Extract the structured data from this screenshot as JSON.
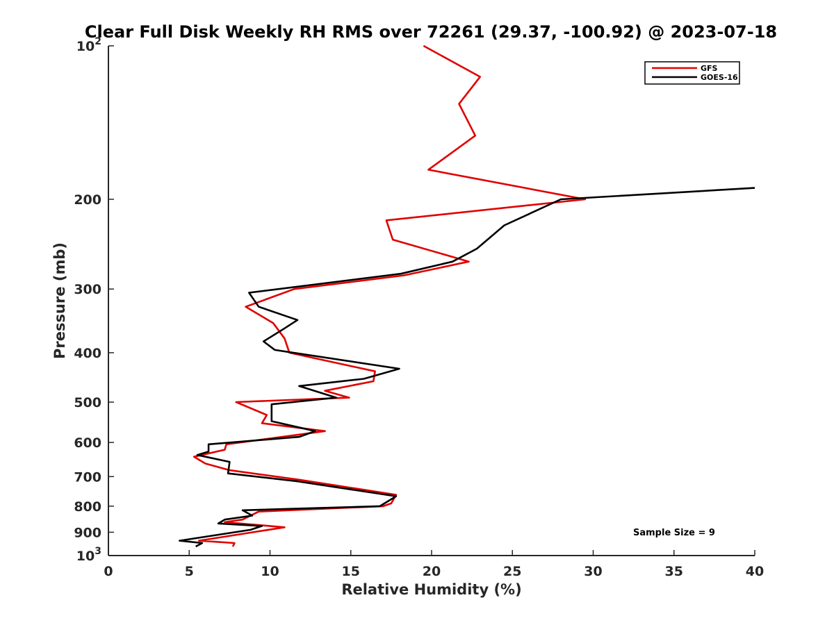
{
  "chart_data": {
    "type": "line",
    "title": "Clear Full Disk Weekly RH RMS over 72261 (29.37, -100.92) @ 2023-07-18",
    "xlabel": "Relative Humidity (%)",
    "ylabel": "Pressure (mb)",
    "xlim": [
      0,
      40
    ],
    "ylim": [
      100,
      1000
    ],
    "y_scale": "log",
    "y_reversed": true,
    "grid": false,
    "legend_position": "top-right",
    "x_ticks": [
      "0",
      "5",
      "10",
      "15",
      "20",
      "25",
      "30",
      "35",
      "40"
    ],
    "y_ticks": [
      {
        "value": 100,
        "base": "10",
        "exp": "2"
      },
      {
        "value": 200,
        "label": "200"
      },
      {
        "value": 300,
        "label": "300"
      },
      {
        "value": 400,
        "label": "400"
      },
      {
        "value": 500,
        "label": "500"
      },
      {
        "value": 600,
        "label": "600"
      },
      {
        "value": 700,
        "label": "700"
      },
      {
        "value": 800,
        "label": "800"
      },
      {
        "value": 900,
        "label": "900"
      },
      {
        "value": 1000,
        "base": "10",
        "exp": "3"
      }
    ],
    "annotation": "Sample Size = 9",
    "series": [
      {
        "name": "GFS",
        "color": "#e00000",
        "points": [
          [
            19.5,
            100
          ],
          [
            23.0,
            115
          ],
          [
            21.7,
            130
          ],
          [
            22.7,
            150
          ],
          [
            19.8,
            175
          ],
          [
            29.5,
            200
          ],
          [
            17.2,
            220
          ],
          [
            17.6,
            240
          ],
          [
            22.3,
            265
          ],
          [
            18.3,
            282
          ],
          [
            11.5,
            300
          ],
          [
            8.5,
            325
          ],
          [
            10.2,
            350
          ],
          [
            10.9,
            375
          ],
          [
            11.2,
            400
          ],
          [
            16.5,
            435
          ],
          [
            16.4,
            455
          ],
          [
            13.4,
            475
          ],
          [
            14.9,
            490
          ],
          [
            7.9,
            500
          ],
          [
            9.8,
            530
          ],
          [
            9.5,
            550
          ],
          [
            13.4,
            570
          ],
          [
            7.3,
            605
          ],
          [
            7.2,
            620
          ],
          [
            5.3,
            640
          ],
          [
            6.0,
            660
          ],
          [
            7.5,
            680
          ],
          [
            11.8,
            710
          ],
          [
            17.8,
            760
          ],
          [
            17.5,
            790
          ],
          [
            17.0,
            800
          ],
          [
            9.3,
            820
          ],
          [
            8.3,
            850
          ],
          [
            7.2,
            860
          ],
          [
            10.9,
            880
          ],
          [
            5.6,
            935
          ],
          [
            7.8,
            945
          ],
          [
            7.7,
            960
          ]
        ]
      },
      {
        "name": "GOES-16",
        "color": "#000000",
        "points": [
          [
            40.0,
            190
          ],
          [
            28.0,
            200
          ],
          [
            24.5,
            225
          ],
          [
            22.8,
            250
          ],
          [
            21.3,
            265
          ],
          [
            18.1,
            280
          ],
          [
            8.7,
            305
          ],
          [
            9.3,
            325
          ],
          [
            11.7,
            345
          ],
          [
            10.8,
            360
          ],
          [
            9.6,
            380
          ],
          [
            10.3,
            395
          ],
          [
            18.0,
            430
          ],
          [
            15.8,
            450
          ],
          [
            11.8,
            465
          ],
          [
            14.1,
            490
          ],
          [
            10.1,
            505
          ],
          [
            10.1,
            545
          ],
          [
            12.8,
            570
          ],
          [
            11.8,
            585
          ],
          [
            6.2,
            605
          ],
          [
            6.2,
            625
          ],
          [
            5.5,
            635
          ],
          [
            7.5,
            655
          ],
          [
            7.4,
            690
          ],
          [
            11.7,
            715
          ],
          [
            17.8,
            765
          ],
          [
            16.8,
            800
          ],
          [
            8.3,
            815
          ],
          [
            8.9,
            835
          ],
          [
            7.2,
            850
          ],
          [
            6.8,
            865
          ],
          [
            9.5,
            875
          ],
          [
            8.8,
            890
          ],
          [
            4.4,
            935
          ],
          [
            5.8,
            945
          ],
          [
            5.4,
            960
          ]
        ]
      }
    ]
  }
}
